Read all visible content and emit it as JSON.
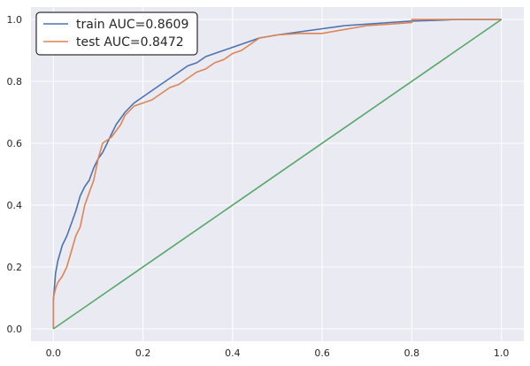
{
  "chart_data": {
    "type": "line",
    "title": "",
    "xlabel": "",
    "ylabel": "",
    "xlim": [
      -0.05,
      1.05
    ],
    "ylim": [
      -0.04,
      1.04
    ],
    "grid": true,
    "legend_position": "top-left",
    "x_ticks": [
      "0.0",
      "0.2",
      "0.4",
      "0.6",
      "0.8",
      "1.0"
    ],
    "y_ticks": [
      "0.0",
      "0.2",
      "0.4",
      "0.6",
      "0.8",
      "1.0"
    ],
    "series": [
      {
        "name": "train AUC=0.8609",
        "color": "#4c72b0",
        "points": [
          [
            0,
            0
          ],
          [
            0,
            0.09
          ],
          [
            0.005,
            0.18
          ],
          [
            0.01,
            0.22
          ],
          [
            0.02,
            0.27
          ],
          [
            0.03,
            0.3
          ],
          [
            0.04,
            0.34
          ],
          [
            0.05,
            0.38
          ],
          [
            0.06,
            0.43
          ],
          [
            0.07,
            0.46
          ],
          [
            0.08,
            0.48
          ],
          [
            0.09,
            0.52
          ],
          [
            0.1,
            0.55
          ],
          [
            0.11,
            0.57
          ],
          [
            0.12,
            0.6
          ],
          [
            0.13,
            0.63
          ],
          [
            0.14,
            0.66
          ],
          [
            0.15,
            0.68
          ],
          [
            0.16,
            0.7
          ],
          [
            0.18,
            0.73
          ],
          [
            0.2,
            0.75
          ],
          [
            0.22,
            0.77
          ],
          [
            0.24,
            0.79
          ],
          [
            0.26,
            0.81
          ],
          [
            0.28,
            0.83
          ],
          [
            0.3,
            0.85
          ],
          [
            0.32,
            0.86
          ],
          [
            0.34,
            0.88
          ],
          [
            0.36,
            0.89
          ],
          [
            0.38,
            0.9
          ],
          [
            0.4,
            0.91
          ],
          [
            0.42,
            0.92
          ],
          [
            0.44,
            0.93
          ],
          [
            0.46,
            0.94
          ],
          [
            0.5,
            0.95
          ],
          [
            0.55,
            0.96
          ],
          [
            0.6,
            0.97
          ],
          [
            0.65,
            0.98
          ],
          [
            0.7,
            0.985
          ],
          [
            0.75,
            0.99
          ],
          [
            0.8,
            0.995
          ],
          [
            0.85,
            0.997
          ],
          [
            0.9,
            1.0
          ],
          [
            1.0,
            1.0
          ]
        ]
      },
      {
        "name": "test AUC=0.8472",
        "color": "#dd8452",
        "points": [
          [
            0,
            0
          ],
          [
            0,
            0.1
          ],
          [
            0.005,
            0.13
          ],
          [
            0.01,
            0.15
          ],
          [
            0.02,
            0.17
          ],
          [
            0.03,
            0.2
          ],
          [
            0.04,
            0.25
          ],
          [
            0.05,
            0.3
          ],
          [
            0.06,
            0.33
          ],
          [
            0.07,
            0.4
          ],
          [
            0.08,
            0.44
          ],
          [
            0.09,
            0.48
          ],
          [
            0.1,
            0.55
          ],
          [
            0.11,
            0.6
          ],
          [
            0.12,
            0.61
          ],
          [
            0.13,
            0.62
          ],
          [
            0.14,
            0.64
          ],
          [
            0.15,
            0.66
          ],
          [
            0.16,
            0.69
          ],
          [
            0.18,
            0.72
          ],
          [
            0.2,
            0.73
          ],
          [
            0.22,
            0.74
          ],
          [
            0.24,
            0.76
          ],
          [
            0.26,
            0.78
          ],
          [
            0.28,
            0.79
          ],
          [
            0.3,
            0.81
          ],
          [
            0.32,
            0.83
          ],
          [
            0.34,
            0.84
          ],
          [
            0.36,
            0.86
          ],
          [
            0.38,
            0.87
          ],
          [
            0.4,
            0.89
          ],
          [
            0.42,
            0.9
          ],
          [
            0.44,
            0.92
          ],
          [
            0.46,
            0.94
          ],
          [
            0.5,
            0.95
          ],
          [
            0.55,
            0.955
          ],
          [
            0.6,
            0.955
          ],
          [
            0.62,
            0.96
          ],
          [
            0.66,
            0.97
          ],
          [
            0.7,
            0.98
          ],
          [
            0.75,
            0.985
          ],
          [
            0.8,
            0.99
          ],
          [
            0.8,
            1.0
          ],
          [
            1.0,
            1.0
          ]
        ]
      },
      {
        "name": "",
        "color": "#55a868",
        "points": [
          [
            0,
            0
          ],
          [
            1,
            1
          ]
        ]
      }
    ]
  }
}
